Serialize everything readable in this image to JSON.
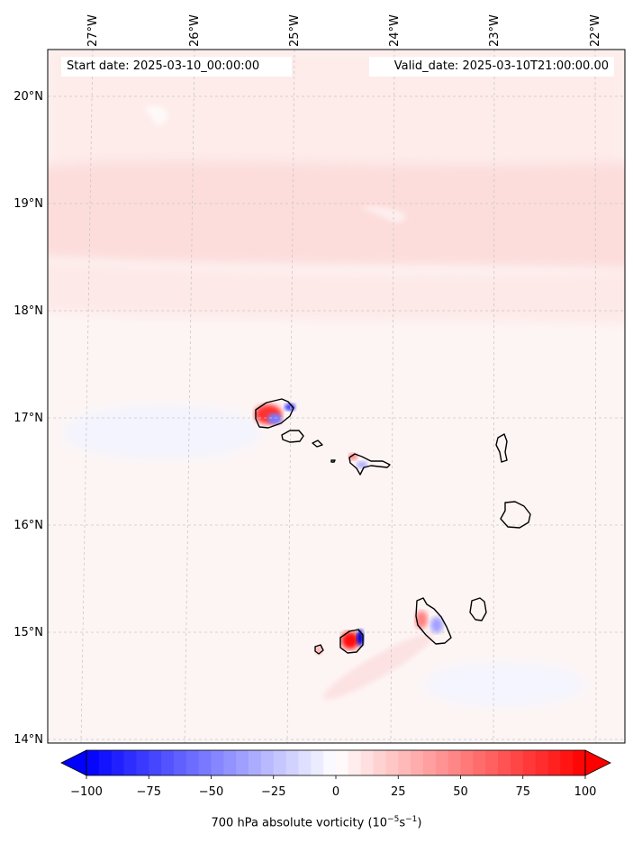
{
  "header": {
    "start_date": "Start date: 2025-03-10_00:00:00",
    "valid_date": "Valid_date: 2025-03-10T21:00:00.00"
  },
  "map": {
    "lon_labels": [
      "27°W",
      "26°W",
      "25°W",
      "24°W",
      "23°W",
      "22°W"
    ],
    "lat_labels": [
      "20°N",
      "19°N",
      "18°N",
      "17°N",
      "16°N",
      "15°N",
      "14°N"
    ],
    "background_color": "#fdf4f3",
    "band_color": "#fde0df",
    "coastline_color": "#000000",
    "gridline_color": "#c8c8c8",
    "islands": [
      "Santo Antão",
      "São Vicente",
      "Santa Luzia",
      "Branco",
      "São Nicolau",
      "Sal",
      "Boa Vista",
      "Maio",
      "Santiago",
      "Fogo",
      "Brava"
    ]
  },
  "colorbar": {
    "ticks": [
      "−100",
      "−75",
      "−50",
      "−25",
      "0",
      "25",
      "50",
      "75",
      "100"
    ],
    "min": -100,
    "max": 100,
    "low_color": "#0000ff",
    "mid_color": "#ffffff",
    "high_color": "#ff0000",
    "label": "700 hPa absolute vorticity (10",
    "label_exp1": "−5",
    "label_mid": "s",
    "label_exp2": "−1",
    "label_end": ")"
  }
}
